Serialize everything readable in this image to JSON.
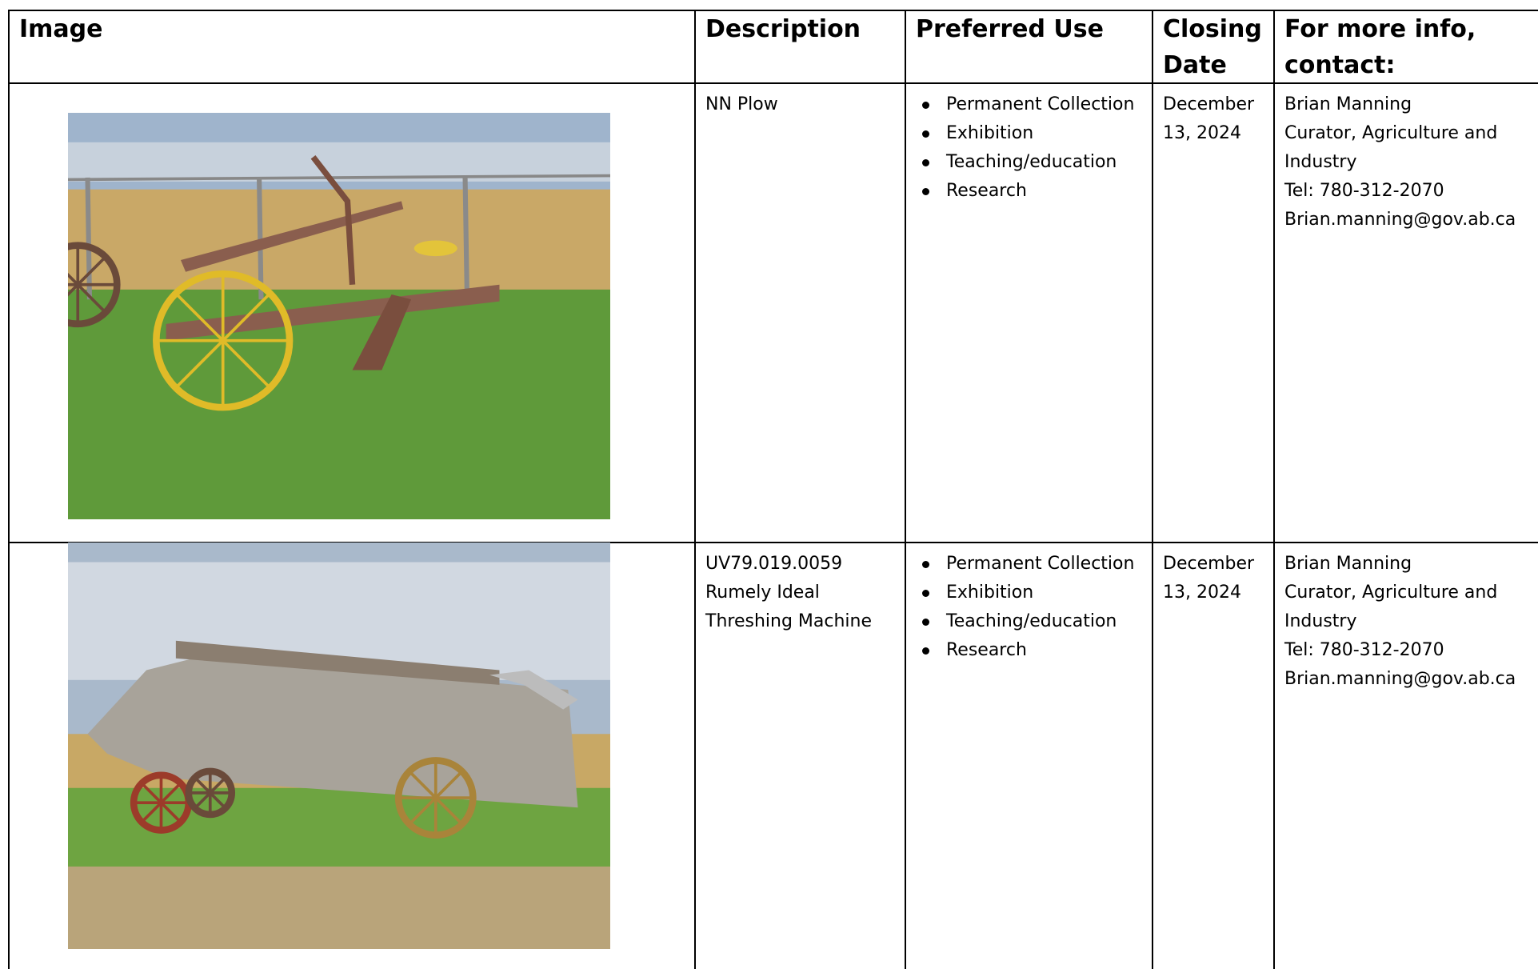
{
  "table": {
    "header": [
      "Image",
      "Description",
      "Preferred Use",
      "Closing Date",
      "For more info, contact:"
    ],
    "rows": [
      {
        "description": [
          "NN Plow"
        ],
        "preferred_use": [
          "Permanent Collection",
          "Exhibition",
          "Teaching/education",
          "Research"
        ],
        "closing_date": "December 13, 2024",
        "contact": [
          "Brian Manning",
          "Curator, Agriculture and Industry",
          "Tel: 780-312-2070",
          "Brian.manning@gov.ab.ca"
        ]
      },
      {
        "description": [
          "UV79.019.0059",
          "Rumely Ideal",
          "Threshing Machine"
        ],
        "preferred_use": [
          "Permanent Collection",
          "Exhibition",
          "Teaching/education",
          "Research"
        ],
        "closing_date": "December 13, 2024",
        "contact": [
          "Brian Manning",
          "Curator, Agriculture and Industry",
          "Tel: 780-312-2070",
          "Brian.manning@gov.ab.ca"
        ]
      }
    ]
  }
}
